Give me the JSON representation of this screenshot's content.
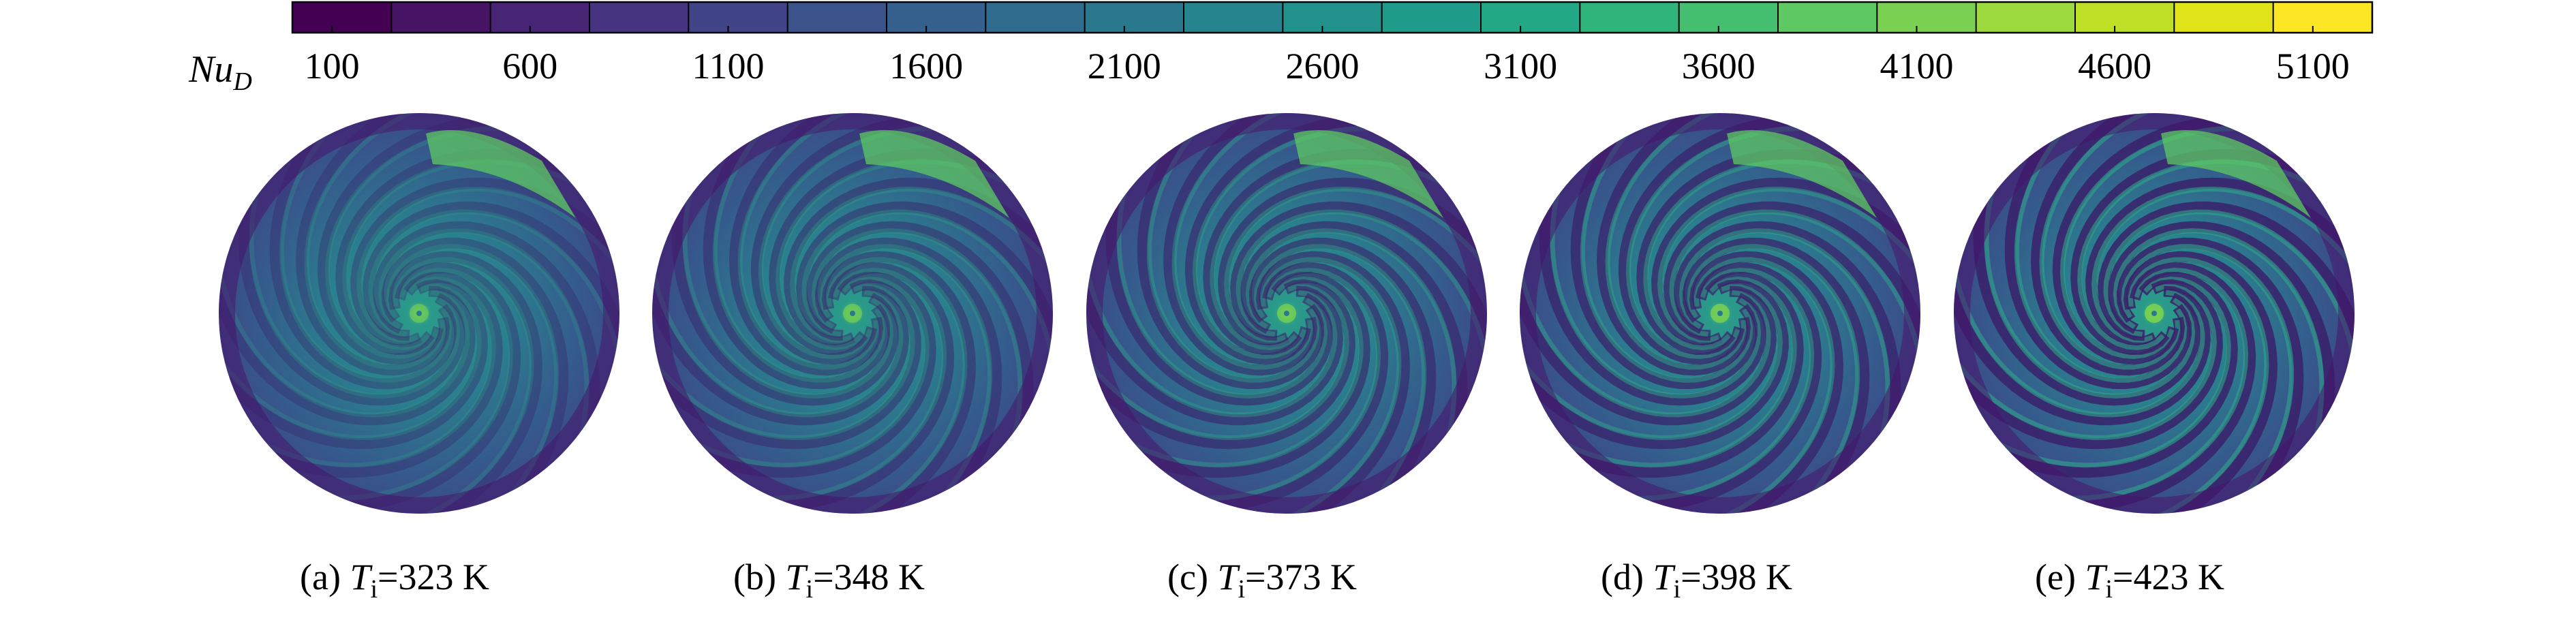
{
  "figure": {
    "colorbar": {
      "label": "Nu",
      "label_subscript": "D",
      "range": [
        0,
        5250
      ],
      "ticks": [
        100,
        600,
        1100,
        1600,
        2100,
        2600,
        3100,
        3600,
        4100,
        4600,
        5100
      ],
      "colors": [
        "#440154",
        "#471365",
        "#482475",
        "#463480",
        "#414487",
        "#3b528b",
        "#355f8d",
        "#2f6c8e",
        "#2a788e",
        "#25848e",
        "#21918c",
        "#1e9c89",
        "#22a884",
        "#2fb47c",
        "#44bf70",
        "#5ec962",
        "#7ad151",
        "#9bd93c",
        "#bddf26",
        "#dfe318",
        "#fde725"
      ]
    },
    "panels": [
      {
        "tag": "(a) ",
        "symbol": "T",
        "subscript": "i",
        "value": "=323 K"
      },
      {
        "tag": "(b) ",
        "symbol": "T",
        "subscript": "i",
        "value": "=348 K"
      },
      {
        "tag": "(c) ",
        "symbol": "T",
        "subscript": "i",
        "value": "=373 K"
      },
      {
        "tag": "(d) ",
        "symbol": "T",
        "subscript": "i",
        "value": "=398 K"
      },
      {
        "tag": "(e) ",
        "symbol": "T",
        "subscript": "i",
        "value": "=423 K"
      }
    ]
  }
}
